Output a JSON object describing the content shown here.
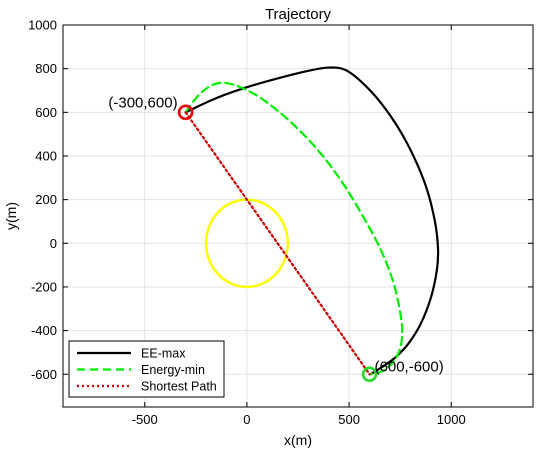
{
  "chart_data": {
    "type": "line",
    "title": "Trajectory",
    "xlabel": "x(m)",
    "ylabel": "y(m)",
    "xlim": [
      -900,
      1400
    ],
    "ylim": [
      -750,
      1000
    ],
    "xticks": [
      -500,
      0,
      500,
      1000
    ],
    "yticks": [
      -600,
      -400,
      -200,
      0,
      200,
      400,
      600,
      800,
      1000
    ],
    "grid": true,
    "legend_position": "bottom-left",
    "series": [
      {
        "name": "EE-max",
        "color": "#000000",
        "style": "solid",
        "x": [
          -300,
          -150,
          0,
          150,
          300,
          400,
          480,
          560,
          650,
          740,
          820,
          880,
          920,
          935,
          930,
          900,
          850,
          790,
          730,
          680,
          640,
          605
        ],
        "y": [
          600,
          665,
          715,
          755,
          790,
          805,
          795,
          740,
          650,
          530,
          390,
          250,
          100,
          -20,
          -120,
          -250,
          -370,
          -460,
          -520,
          -555,
          -580,
          -600
        ]
      },
      {
        "name": "Energy-min",
        "color": "#00ee00",
        "style": "dashed",
        "x": [
          -300,
          -240,
          -180,
          -130,
          -80,
          -20,
          60,
          160,
          270,
          380,
          480,
          570,
          650,
          710,
          745,
          760,
          750,
          720,
          680,
          640,
          605
        ],
        "y": [
          600,
          675,
          720,
          735,
          730,
          710,
          670,
          600,
          505,
          390,
          260,
          120,
          -20,
          -160,
          -290,
          -400,
          -480,
          -540,
          -575,
          -595,
          -600
        ]
      },
      {
        "name": "Shortest Path",
        "color": "#cc0000",
        "style": "dotted",
        "x": [
          -300,
          600
        ],
        "y": [
          600,
          -600
        ]
      }
    ],
    "obstacle": {
      "center": [
        0,
        0
      ],
      "radius": 200,
      "color": "#ffff00"
    },
    "markers": [
      {
        "x": -300,
        "y": 600,
        "color": "#ee0000",
        "label": "(-300,600)"
      },
      {
        "x": 600,
        "y": -600,
        "color": "#22dd22",
        "label": "(600,-600)"
      }
    ]
  }
}
